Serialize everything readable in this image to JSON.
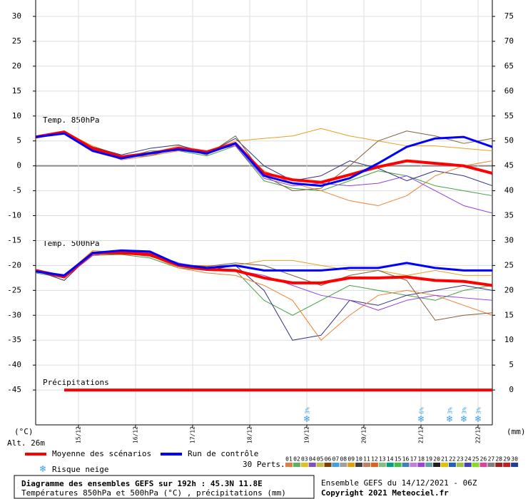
{
  "chart_data": {
    "type": "line",
    "labels": {
      "y_unit": "(°C)",
      "altitude": "Alt. 26m",
      "y2_unit": "(mm)",
      "t850": "Temp. 850hPa",
      "t500": "Temp. 500hPa",
      "precip": "Précipitations",
      "snow_legend": "Risque neige",
      "perts": "30 Perts."
    },
    "footer": {
      "title": "Diagramme des ensembles GEFS sur 192h : 45.3N 11.8E",
      "subtitle": "Températures 850hPa et 500hPa (°C) , précipitations (mm)",
      "run": "Ensemble GEFS du 14/12/2021 - 06Z",
      "copyright": "Copyright 2021 Meteociel.fr"
    },
    "xlim": [
      0,
      192
    ],
    "xticks": [
      {
        "value": 18,
        "label": "15/12"
      },
      {
        "value": 42,
        "label": "16/12"
      },
      {
        "value": 66,
        "label": "17/12"
      },
      {
        "value": 90,
        "label": "18/12"
      },
      {
        "value": 114,
        "label": "19/12"
      },
      {
        "value": 138,
        "label": "20/12"
      },
      {
        "value": 162,
        "label": "21/12"
      },
      {
        "value": 186,
        "label": "22/12"
      }
    ],
    "ylim": [
      -52,
      30
    ],
    "yticks": [
      30,
      25,
      20,
      15,
      10,
      5,
      0,
      -5,
      -10,
      -15,
      -20,
      -25,
      -30,
      -35,
      -40,
      -45
    ],
    "y2lim": [
      -7,
      75
    ],
    "y2ticks": [
      75,
      70,
      65,
      60,
      55,
      50,
      45,
      40,
      35,
      30,
      25,
      20,
      15,
      10,
      5,
      0
    ],
    "grid": true,
    "x": [
      0,
      12,
      24,
      36,
      48,
      60,
      72,
      84,
      96,
      108,
      120,
      132,
      144,
      156,
      168,
      180,
      192
    ],
    "series": [
      {
        "color": "#e8a020",
        "values": [
          5.5,
          6.8,
          4,
          2,
          2.5,
          4,
          3,
          5,
          5.5,
          6,
          7.5,
          6,
          5,
          4,
          4,
          3.5,
          3
        ]
      },
      {
        "color": "#40a040",
        "values": [
          5.8,
          7,
          3.2,
          1.5,
          3,
          3,
          2,
          4,
          -3,
          -4.5,
          -5,
          -3,
          -1,
          -2,
          -4,
          -5,
          -6
        ]
      },
      {
        "color": "#303080",
        "values": [
          5.6,
          6.5,
          3.8,
          2.2,
          3.5,
          4.2,
          2.5,
          5.5,
          0,
          -3,
          -2,
          1,
          -0.5,
          -3,
          -1,
          -2,
          -4
        ]
      },
      {
        "color": "#f08030",
        "values": [
          5.8,
          6.6,
          3.5,
          1.2,
          2,
          3,
          2.8,
          4,
          -1,
          -3.5,
          -5,
          -7,
          -8,
          -6,
          -2,
          0,
          1
        ]
      },
      {
        "color": "#806040",
        "values": [
          5.7,
          6.4,
          3.6,
          1.8,
          2,
          3.6,
          2.2,
          6,
          -2,
          -5,
          -4.5,
          0,
          5,
          7,
          6,
          4.5,
          5.5
        ]
      },
      {
        "color": "#9040e0",
        "values": [
          5.9,
          6.9,
          3.2,
          1.6,
          2.4,
          3.8,
          3,
          4,
          -2.5,
          -4,
          -3.5,
          -4,
          -3.5,
          -2,
          -5,
          -8,
          -9.5
        ]
      },
      {
        "color": "#e8a020",
        "values": [
          -21,
          -22,
          -17,
          -17.5,
          -18,
          -20,
          -20,
          -20,
          -19,
          -19,
          -20,
          -21,
          -21,
          -22,
          -21,
          -22,
          -22
        ]
      },
      {
        "color": "#40a040",
        "values": [
          -21.5,
          -22.5,
          -18,
          -17.8,
          -18.5,
          -20.5,
          -21,
          -21,
          -27,
          -30,
          -27,
          -24,
          -25,
          -26,
          -27,
          -25,
          -24
        ]
      },
      {
        "color": "#303080",
        "values": [
          -21,
          -23,
          -17.5,
          -17.2,
          -17.5,
          -19.5,
          -21,
          -20,
          -25,
          -35,
          -34,
          -27,
          -28,
          -26,
          -25,
          -24,
          -25
        ]
      },
      {
        "color": "#f08030",
        "values": [
          -21.2,
          -22.5,
          -17.8,
          -17.6,
          -18,
          -20.5,
          -21.5,
          -22,
          -24,
          -27,
          -35,
          -30,
          -26,
          -25,
          -26,
          -28,
          -30
        ]
      },
      {
        "color": "#806040",
        "values": [
          -20.8,
          -22,
          -17.3,
          -17.5,
          -18.2,
          -19.8,
          -20.2,
          -19.5,
          -20,
          -22,
          -24,
          -22,
          -21,
          -23,
          -31,
          -30,
          -29.5
        ]
      },
      {
        "color": "#9040e0",
        "values": [
          -21,
          -22.5,
          -18,
          -17,
          -17.5,
          -19.5,
          -20.5,
          -21,
          -22,
          -24,
          -26,
          -27,
          -29,
          -27,
          -26,
          -26.5,
          -27
        ]
      },
      {
        "name": "Moyenne des scénarios",
        "color": "#ff0000",
        "width": 4,
        "values": [
          5.8,
          6.8,
          3.5,
          1.8,
          2.5,
          3.5,
          2.8,
          4.5,
          -1.5,
          -2.8,
          -3.3,
          -1.8,
          -0.2,
          1,
          0.5,
          0,
          -1.5
        ]
      },
      {
        "color": "#ff0000",
        "width": 4,
        "values": [
          -21,
          -22.3,
          -17.5,
          -17.5,
          -17.8,
          -20,
          -20.8,
          -21,
          -22.5,
          -23.5,
          -23.5,
          -22.5,
          -22.5,
          -22.3,
          -23,
          -23.2,
          -24
        ]
      },
      {
        "color": "#ff0000",
        "width": 4,
        "axis": "y2",
        "values": [
          null,
          0,
          0,
          0,
          0,
          0,
          0,
          0,
          0,
          0,
          0,
          0,
          0,
          0,
          0,
          0,
          0
        ]
      },
      {
        "name": "Run de contrôle",
        "color": "#0000ff",
        "width": 3,
        "values": [
          5.8,
          6.5,
          3,
          1.5,
          2.5,
          3.3,
          2.5,
          4.5,
          -2,
          -3.5,
          -4,
          -2.5,
          0.5,
          3.8,
          5.5,
          5.8,
          3.8
        ]
      },
      {
        "color": "#0000ff",
        "width": 3,
        "values": [
          -21.2,
          -22,
          -17.5,
          -17,
          -17.2,
          -19.8,
          -20.5,
          -20,
          -21,
          -21,
          -21,
          -20.5,
          -20.5,
          -19.5,
          -20.5,
          -21,
          -21
        ]
      }
    ],
    "snow": {
      "x": [
        114,
        162,
        174,
        180,
        186
      ],
      "values": [
        3,
        6,
        3,
        3,
        3
      ],
      "value_labels": [
        "3%",
        "6%",
        "3%",
        "3%",
        "3%"
      ],
      "color": "#40a0e0"
    },
    "members": [
      {
        "label": "01",
        "color": "#e08040"
      },
      {
        "label": "02",
        "color": "#60b060"
      },
      {
        "label": "03",
        "color": "#e0c020"
      },
      {
        "label": "04",
        "color": "#8050c0"
      },
      {
        "label": "05",
        "color": "#c0c040"
      },
      {
        "label": "06",
        "color": "#804000"
      },
      {
        "label": "07",
        "color": "#40a0e0"
      },
      {
        "label": "08",
        "color": "#a0a0a0"
      },
      {
        "label": "09",
        "color": "#e0a000"
      },
      {
        "label": "10",
        "color": "#404040"
      },
      {
        "label": "11",
        "color": "#c08060"
      },
      {
        "label": "12",
        "color": "#e06020"
      },
      {
        "label": "13",
        "color": "#80c080"
      },
      {
        "label": "14",
        "color": "#00a080"
      },
      {
        "label": "15",
        "color": "#40c040"
      },
      {
        "label": "16",
        "color": "#4080c0"
      },
      {
        "label": "17",
        "color": "#c080e0"
      },
      {
        "label": "18",
        "color": "#a040e0"
      },
      {
        "label": "19",
        "color": "#60a0a0"
      },
      {
        "label": "20",
        "color": "#202020"
      },
      {
        "label": "21",
        "color": "#e0c000"
      },
      {
        "label": "22",
        "color": "#2060c0"
      },
      {
        "label": "23",
        "color": "#a0c040"
      },
      {
        "label": "24",
        "color": "#4040c0"
      },
      {
        "label": "25",
        "color": "#80e020"
      },
      {
        "label": "26",
        "color": "#e040a0"
      },
      {
        "label": "27",
        "color": "#808080"
      },
      {
        "label": "28",
        "color": "#a02020"
      },
      {
        "label": "29",
        "color": "#c02020"
      },
      {
        "label": "30",
        "color": "#2040a0"
      }
    ]
  }
}
